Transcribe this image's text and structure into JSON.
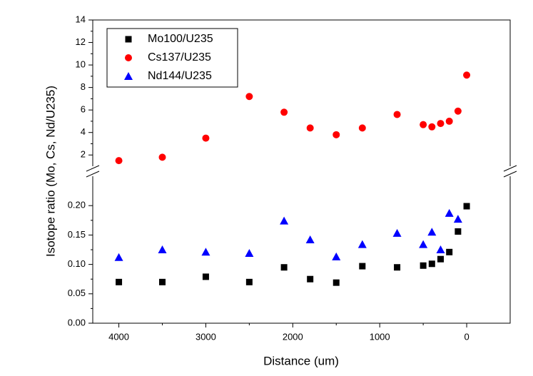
{
  "chart_data": {
    "type": "scatter",
    "xlabel": "Distance (um)",
    "ylabel": "Isotope ratio (Mo, Cs, Nd/U235)",
    "xlim": [
      4300,
      -500
    ],
    "xticks": [
      4000,
      3000,
      2000,
      1000,
      0
    ],
    "ylim": [
      0,
      0.25
    ],
    "yticks": [
      {
        "value": 0,
        "label": "0.00"
      },
      0.05,
      {
        "value": 0.1,
        "label": "0.10"
      },
      0.15,
      {
        "value": 0.2,
        "label": "0.20"
      }
    ],
    "y2lim": [
      1,
      14
    ],
    "y2ticks": [
      2,
      4,
      6,
      8,
      10,
      12,
      14
    ],
    "legend": "upper left",
    "series": [
      {
        "name": "Mo100/U235",
        "color": "#000000",
        "marker": "square",
        "x": [
          4000,
          3500,
          3000,
          2500,
          2100,
          1800,
          1500,
          1200,
          800,
          500,
          400,
          300,
          200,
          100,
          0
        ],
        "values": [
          0.07,
          0.07,
          0.079,
          0.07,
          0.095,
          0.075,
          0.069,
          0.097,
          0.095,
          0.098,
          0.101,
          0.109,
          0.121,
          0.156,
          0.199
        ]
      },
      {
        "name": "Cs137/U235",
        "color": "#ff0000",
        "marker": "circle",
        "axis": "y2",
        "x": [
          4000,
          3500,
          3000,
          2500,
          2100,
          1800,
          1500,
          1200,
          800,
          500,
          400,
          300,
          200,
          100,
          0
        ],
        "values": [
          1.5,
          1.8,
          3.5,
          7.2,
          5.8,
          4.4,
          3.8,
          4.4,
          5.6,
          4.7,
          4.5,
          4.8,
          5.0,
          5.9,
          9.1
        ]
      },
      {
        "name": "Nd144/U235",
        "color": "#0000ff",
        "marker": "triangle",
        "x": [
          4000,
          3500,
          3000,
          2500,
          2100,
          1800,
          1500,
          1200,
          800,
          500,
          400,
          300,
          200,
          100
        ],
        "values": [
          0.112,
          0.125,
          0.121,
          0.119,
          0.174,
          0.142,
          0.113,
          0.134,
          0.153,
          0.134,
          0.155,
          0.125,
          0.187,
          0.177
        ]
      }
    ]
  }
}
